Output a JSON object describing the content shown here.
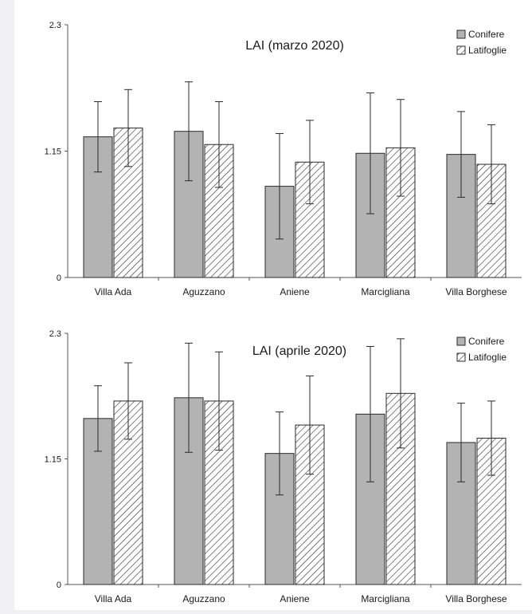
{
  "colors": {
    "conifere_fill": "#b3b3b3",
    "bar_stroke": "#2a2a2a",
    "axis": "#555555",
    "text": "#1a1a1a"
  },
  "legend_icons": [
    "gray-square-icon",
    "hatched-square-icon"
  ],
  "chart_data": [
    {
      "type": "bar",
      "title": "LAI (marzo 2020)",
      "categories": [
        "Villa Ada",
        "Aguzzano",
        "Aniene",
        "Marcigliana",
        "Villa Borghese"
      ],
      "yticks": [
        "2.3",
        "1.15",
        "0"
      ],
      "ylim": [
        0,
        2.3
      ],
      "grid": false,
      "legend_position": "top-right",
      "series": [
        {
          "name": "Conifere",
          "pattern": "solid",
          "values": [
            1.28,
            1.33,
            0.83,
            1.13,
            1.12
          ],
          "error": [
            0.32,
            0.45,
            0.48,
            0.55,
            0.39
          ]
        },
        {
          "name": "Latifoglie",
          "pattern": "hatch",
          "values": [
            1.36,
            1.21,
            1.05,
            1.18,
            1.03
          ],
          "error": [
            0.35,
            0.39,
            0.38,
            0.44,
            0.36
          ]
        }
      ]
    },
    {
      "type": "bar",
      "title": "LAI (aprile 2020)",
      "categories": [
        "Villa Ada",
        "Aguzzano",
        "Aniene",
        "Marcigliana",
        "Villa Borghese"
      ],
      "yticks": [
        "2.3",
        "1.15",
        "0"
      ],
      "ylim": [
        0,
        2.3
      ],
      "grid": false,
      "legend_position": "top-right",
      "series": [
        {
          "name": "Conifere",
          "pattern": "solid",
          "values": [
            1.52,
            1.71,
            1.2,
            1.56,
            1.3
          ],
          "error": [
            0.3,
            0.5,
            0.38,
            0.62,
            0.36
          ]
        },
        {
          "name": "Latifoglie",
          "pattern": "hatch",
          "values": [
            1.68,
            1.68,
            1.46,
            1.75,
            1.34
          ],
          "error": [
            0.35,
            0.45,
            0.45,
            0.5,
            0.34
          ]
        }
      ]
    }
  ]
}
